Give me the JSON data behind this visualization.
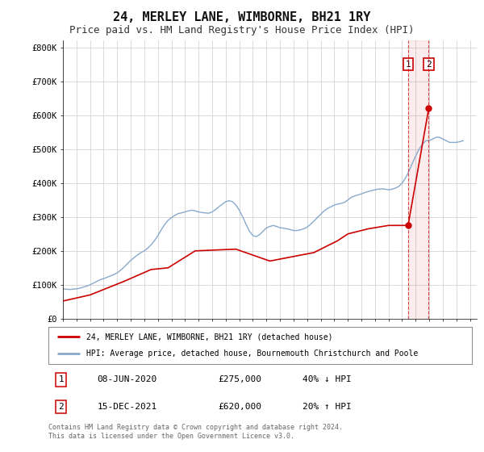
{
  "title": "24, MERLEY LANE, WIMBORNE, BH21 1RY",
  "subtitle": "Price paid vs. HM Land Registry's House Price Index (HPI)",
  "title_fontsize": 11,
  "subtitle_fontsize": 9,
  "ylim": [
    0,
    820000
  ],
  "xlim_start": 1995.0,
  "xlim_end": 2025.5,
  "yticks": [
    0,
    100000,
    200000,
    300000,
    400000,
    500000,
    600000,
    700000,
    800000
  ],
  "ytick_labels": [
    "£0",
    "£100K",
    "£200K",
    "£300K",
    "£400K",
    "£500K",
    "£600K",
    "£700K",
    "£800K"
  ],
  "xticks": [
    1995,
    1996,
    1997,
    1998,
    1999,
    2000,
    2001,
    2002,
    2003,
    2004,
    2005,
    2006,
    2007,
    2008,
    2009,
    2010,
    2011,
    2012,
    2013,
    2014,
    2015,
    2016,
    2017,
    2018,
    2019,
    2020,
    2021,
    2022,
    2023,
    2024,
    2025
  ],
  "red_line_color": "#cc0000",
  "blue_line_color": "#88aacc",
  "grid_color": "#cccccc",
  "background_color": "#ffffff",
  "annotation_box_color": "#cc0000",
  "marker1_x": 2020.44,
  "marker1_y": 275000,
  "marker2_x": 2021.96,
  "marker2_y": 620000,
  "vline1_x": 2020.44,
  "vline2_x": 2021.96,
  "legend_label_red": "24, MERLEY LANE, WIMBORNE, BH21 1RY (detached house)",
  "legend_label_blue": "HPI: Average price, detached house, Bournemouth Christchurch and Poole",
  "annotation1_num": "1",
  "annotation1_date": "08-JUN-2020",
  "annotation1_price": "£275,000",
  "annotation1_hpi": "40% ↓ HPI",
  "annotation2_num": "2",
  "annotation2_date": "15-DEC-2021",
  "annotation2_price": "£620,000",
  "annotation2_hpi": "20% ↑ HPI",
  "footer_text": "Contains HM Land Registry data © Crown copyright and database right 2024.\nThis data is licensed under the Open Government Licence v3.0.",
  "hpi_data_x": [
    1995.0,
    1995.25,
    1995.5,
    1995.75,
    1996.0,
    1996.25,
    1996.5,
    1996.75,
    1997.0,
    1997.25,
    1997.5,
    1997.75,
    1998.0,
    1998.25,
    1998.5,
    1998.75,
    1999.0,
    1999.25,
    1999.5,
    1999.75,
    2000.0,
    2000.25,
    2000.5,
    2000.75,
    2001.0,
    2001.25,
    2001.5,
    2001.75,
    2002.0,
    2002.25,
    2002.5,
    2002.75,
    2003.0,
    2003.25,
    2003.5,
    2003.75,
    2004.0,
    2004.25,
    2004.5,
    2004.75,
    2005.0,
    2005.25,
    2005.5,
    2005.75,
    2006.0,
    2006.25,
    2006.5,
    2006.75,
    2007.0,
    2007.25,
    2007.5,
    2007.75,
    2008.0,
    2008.25,
    2008.5,
    2008.75,
    2009.0,
    2009.25,
    2009.5,
    2009.75,
    2010.0,
    2010.25,
    2010.5,
    2010.75,
    2011.0,
    2011.25,
    2011.5,
    2011.75,
    2012.0,
    2012.25,
    2012.5,
    2012.75,
    2013.0,
    2013.25,
    2013.5,
    2013.75,
    2014.0,
    2014.25,
    2014.5,
    2014.75,
    2015.0,
    2015.25,
    2015.5,
    2015.75,
    2016.0,
    2016.25,
    2016.5,
    2016.75,
    2017.0,
    2017.25,
    2017.5,
    2017.75,
    2018.0,
    2018.25,
    2018.5,
    2018.75,
    2019.0,
    2019.25,
    2019.5,
    2019.75,
    2020.0,
    2020.25,
    2020.5,
    2020.75,
    2021.0,
    2021.25,
    2021.5,
    2021.75,
    2022.0,
    2022.25,
    2022.5,
    2022.75,
    2023.0,
    2023.25,
    2023.5,
    2023.75,
    2024.0,
    2024.25,
    2024.5
  ],
  "hpi_data_y": [
    88000,
    87000,
    86000,
    87000,
    88000,
    90000,
    93000,
    96000,
    100000,
    105000,
    110000,
    115000,
    118000,
    122000,
    126000,
    130000,
    135000,
    143000,
    152000,
    162000,
    172000,
    180000,
    188000,
    195000,
    200000,
    208000,
    218000,
    230000,
    245000,
    262000,
    278000,
    290000,
    298000,
    305000,
    310000,
    312000,
    315000,
    318000,
    320000,
    318000,
    315000,
    313000,
    312000,
    311000,
    315000,
    322000,
    330000,
    338000,
    345000,
    348000,
    345000,
    335000,
    320000,
    300000,
    278000,
    258000,
    245000,
    242000,
    248000,
    258000,
    268000,
    272000,
    275000,
    272000,
    268000,
    267000,
    265000,
    263000,
    260000,
    260000,
    262000,
    265000,
    270000,
    278000,
    288000,
    298000,
    308000,
    318000,
    325000,
    330000,
    335000,
    338000,
    340000,
    343000,
    350000,
    358000,
    362000,
    365000,
    368000,
    372000,
    375000,
    378000,
    380000,
    382000,
    383000,
    382000,
    380000,
    382000,
    385000,
    390000,
    400000,
    415000,
    435000,
    458000,
    480000,
    500000,
    515000,
    525000,
    525000,
    530000,
    535000,
    535000,
    530000,
    525000,
    520000,
    520000,
    520000,
    522000,
    525000
  ],
  "sale_data_x": [
    1995.0,
    1997.0,
    1999.5,
    2001.5,
    2002.75,
    2004.75,
    2007.75,
    2010.25,
    2013.5,
    2015.25,
    2016.0,
    2017.0,
    2017.5,
    2018.25,
    2019.0,
    2020.44,
    2021.96
  ],
  "sale_data_y": [
    52000,
    70000,
    110000,
    145000,
    150000,
    200000,
    205000,
    170000,
    195000,
    230000,
    250000,
    260000,
    265000,
    270000,
    275000,
    275000,
    620000
  ]
}
